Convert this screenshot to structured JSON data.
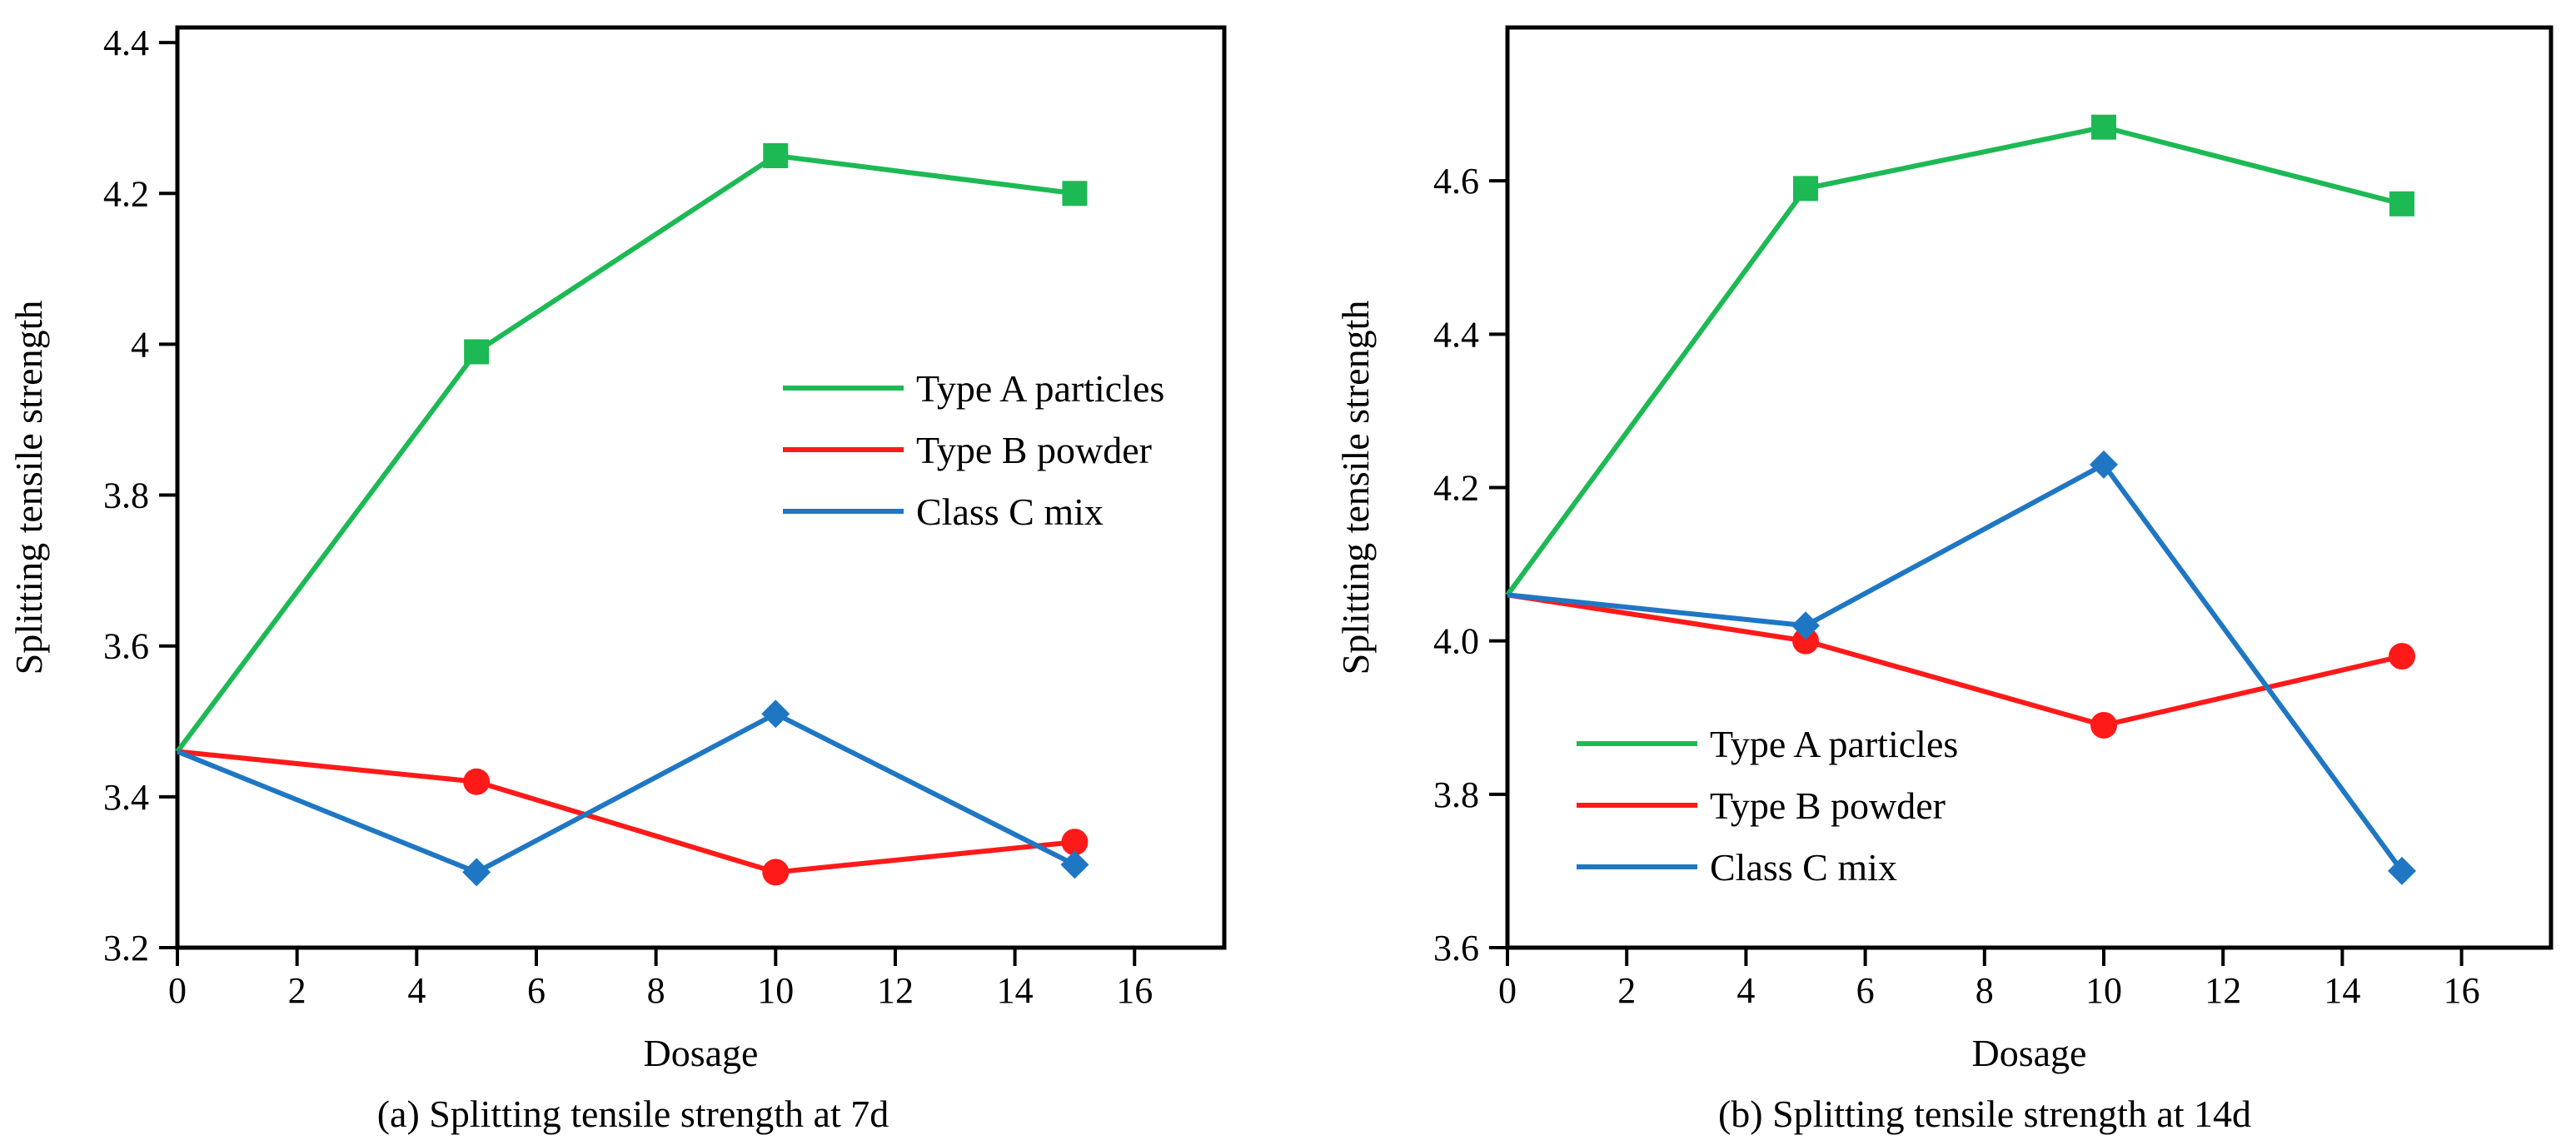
{
  "chart_data": [
    {
      "type": "line",
      "title": "(a) Splitting tensile strength at 7d",
      "xlabel": "Dosage",
      "ylabel": "Splitting tensile strength",
      "xlim": [
        0,
        17.5
      ],
      "ylim": [
        3.2,
        4.42
      ],
      "xticks": [
        0,
        2,
        4,
        6,
        8,
        10,
        12,
        14,
        16
      ],
      "xtick_labels": [
        "0",
        "2",
        "4",
        "6",
        "8",
        "10",
        "12",
        "14",
        "16"
      ],
      "yticks": [
        3.2,
        3.4,
        3.6,
        3.8,
        4.0,
        4.2,
        4.4
      ],
      "ytick_labels": [
        "3.2",
        "3.4",
        "3.6",
        "3.8",
        "4",
        "4.2",
        "4.4"
      ],
      "grid": false,
      "legend_position": "center-right",
      "x": [
        0,
        5,
        10,
        15
      ],
      "series": [
        {
          "name": "Type A particles",
          "color": "#1db954",
          "marker": "square",
          "values": [
            3.46,
            3.99,
            4.25,
            4.2
          ]
        },
        {
          "name": "Type B powder",
          "color": "#ff1a1a",
          "marker": "circle",
          "values": [
            3.46,
            3.42,
            3.3,
            3.34
          ]
        },
        {
          "name": "Class C mix",
          "color": "#1f77c4",
          "marker": "diamond",
          "values": [
            3.46,
            3.3,
            3.51,
            3.31
          ]
        }
      ]
    },
    {
      "type": "line",
      "title": "(b) Splitting tensile strength at 14d",
      "xlabel": "Dosage",
      "ylabel": "Splitting tensile strength",
      "xlim": [
        0,
        17.5
      ],
      "ylim": [
        3.6,
        4.8
      ],
      "xticks": [
        0,
        2,
        4,
        6,
        8,
        10,
        12,
        14,
        16
      ],
      "xtick_labels": [
        "0",
        "2",
        "4",
        "6",
        "8",
        "10",
        "12",
        "14",
        "16"
      ],
      "yticks": [
        3.6,
        3.8,
        4.0,
        4.2,
        4.4,
        4.6
      ],
      "ytick_labels": [
        "3.6",
        "3.8",
        "4.0",
        "4.2",
        "4.4",
        "4.6"
      ],
      "grid": false,
      "legend_position": "bottom-left",
      "x": [
        0,
        5,
        10,
        15
      ],
      "series": [
        {
          "name": "Type A particles",
          "color": "#1db954",
          "marker": "square",
          "values": [
            4.06,
            4.59,
            4.67,
            4.57
          ]
        },
        {
          "name": "Type B powder",
          "color": "#ff1a1a",
          "marker": "circle",
          "values": [
            4.06,
            4.0,
            3.89,
            3.98
          ]
        },
        {
          "name": "Class C mix",
          "color": "#1f77c4",
          "marker": "diamond",
          "values": [
            4.06,
            4.02,
            4.23,
            3.7
          ]
        }
      ]
    }
  ]
}
